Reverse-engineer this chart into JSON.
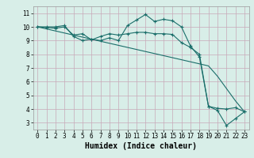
{
  "title": "",
  "xlabel": "Humidex (Indice chaleur)",
  "ylabel": "",
  "bg_color": "#d8eee8",
  "plot_bg_color": "#d8eee8",
  "grid_color": "#c8a8b8",
  "line_color": "#1a6e6a",
  "xlim": [
    -0.5,
    23.5
  ],
  "ylim": [
    2.5,
    11.5
  ],
  "xticks": [
    0,
    1,
    2,
    3,
    4,
    5,
    6,
    7,
    8,
    9,
    10,
    11,
    12,
    13,
    14,
    15,
    16,
    17,
    18,
    19,
    20,
    21,
    22,
    23
  ],
  "yticks": [
    3,
    4,
    5,
    6,
    7,
    8,
    9,
    10,
    11
  ],
  "line1_x": [
    0,
    1,
    2,
    3,
    4,
    5,
    6,
    7,
    8,
    9,
    10,
    11,
    12,
    13,
    14,
    15,
    16,
    17,
    18,
    19,
    20,
    21,
    22,
    23
  ],
  "line1_y": [
    10.0,
    10.0,
    10.0,
    10.1,
    9.3,
    9.0,
    9.1,
    9.0,
    9.2,
    9.0,
    10.1,
    10.5,
    10.9,
    10.4,
    10.55,
    10.45,
    10.0,
    8.6,
    7.8,
    4.2,
    3.9,
    2.8,
    3.3,
    3.8
  ],
  "line2_x": [
    0,
    1,
    2,
    3,
    4,
    5,
    6,
    7,
    8,
    9,
    10,
    11,
    12,
    13,
    14,
    15,
    16,
    17,
    18,
    19,
    20,
    21,
    22,
    23
  ],
  "line2_y": [
    10.0,
    9.95,
    9.9,
    10.0,
    9.4,
    9.5,
    9.05,
    9.3,
    9.5,
    9.4,
    9.5,
    9.6,
    9.6,
    9.5,
    9.5,
    9.45,
    8.85,
    8.5,
    8.0,
    4.2,
    4.05,
    4.0,
    4.1,
    3.8
  ],
  "line3_x": [
    0,
    1,
    2,
    3,
    4,
    5,
    6,
    7,
    8,
    9,
    10,
    11,
    12,
    13,
    14,
    15,
    16,
    17,
    18,
    19,
    20,
    21,
    22,
    23
  ],
  "line3_y": [
    10.0,
    9.85,
    9.7,
    9.55,
    9.4,
    9.25,
    9.1,
    8.95,
    8.8,
    8.65,
    8.5,
    8.35,
    8.2,
    8.05,
    7.9,
    7.75,
    7.6,
    7.45,
    7.3,
    7.15,
    6.4,
    5.5,
    4.6,
    3.8
  ],
  "markersize": 3,
  "linewidth": 0.8,
  "font_family": "monospace",
  "xlabel_fontsize": 7,
  "tick_fontsize": 5.5
}
